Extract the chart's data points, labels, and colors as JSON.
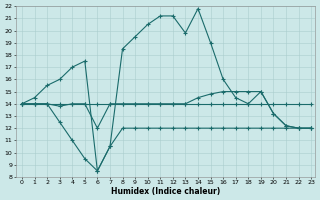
{
  "xlabel": "Humidex (Indice chaleur)",
  "background_color": "#cce8e8",
  "grid_color": "#aacece",
  "line_color": "#1a6b6b",
  "x_min": 0,
  "x_max": 23,
  "y_min": 8,
  "y_max": 22,
  "lines": [
    {
      "x": [
        0,
        1,
        2,
        3,
        4,
        5,
        6,
        7,
        8,
        9,
        10,
        11,
        12,
        13,
        14,
        15,
        16,
        17,
        18,
        19,
        20,
        21,
        22,
        23
      ],
      "y": [
        14,
        14.5,
        15.5,
        16,
        17,
        17.5,
        8.5,
        10.5,
        18.5,
        19.5,
        20.5,
        21.2,
        21.2,
        19.8,
        21.8,
        19.0,
        16.0,
        14.5,
        14,
        15,
        13.2,
        12.2,
        12.0,
        12.0
      ]
    },
    {
      "x": [
        0,
        1,
        2,
        3,
        4,
        5,
        6,
        7,
        8,
        9,
        10,
        11,
        12,
        13,
        14,
        15,
        16,
        17,
        18,
        19,
        20,
        21,
        22,
        23
      ],
      "y": [
        14,
        14,
        14,
        13.8,
        14,
        14,
        12,
        14,
        14,
        14,
        14,
        14,
        14,
        14,
        14.5,
        14.8,
        15.0,
        15,
        15,
        15,
        13.2,
        12.2,
        12.0,
        12.0
      ]
    },
    {
      "x": [
        0,
        1,
        2,
        3,
        4,
        5,
        6,
        7,
        8,
        9,
        10,
        11,
        12,
        13,
        14,
        15,
        16,
        17,
        18,
        19,
        20,
        21,
        22,
        23
      ],
      "y": [
        14,
        14,
        14,
        14,
        14,
        14,
        14,
        14,
        14,
        14,
        14,
        14,
        14,
        14,
        14,
        14,
        14,
        14,
        14,
        14,
        14,
        14,
        14,
        14
      ]
    },
    {
      "x": [
        0,
        1,
        2,
        3,
        4,
        5,
        6,
        7,
        8,
        9,
        10,
        11,
        12,
        13,
        14,
        15,
        16,
        17,
        18,
        19,
        20,
        21,
        22,
        23
      ],
      "y": [
        14,
        14,
        14,
        12.5,
        11.0,
        9.5,
        8.5,
        10.5,
        12,
        12,
        12,
        12,
        12,
        12,
        12,
        12,
        12,
        12,
        12,
        12,
        12,
        12,
        12,
        12
      ]
    }
  ]
}
